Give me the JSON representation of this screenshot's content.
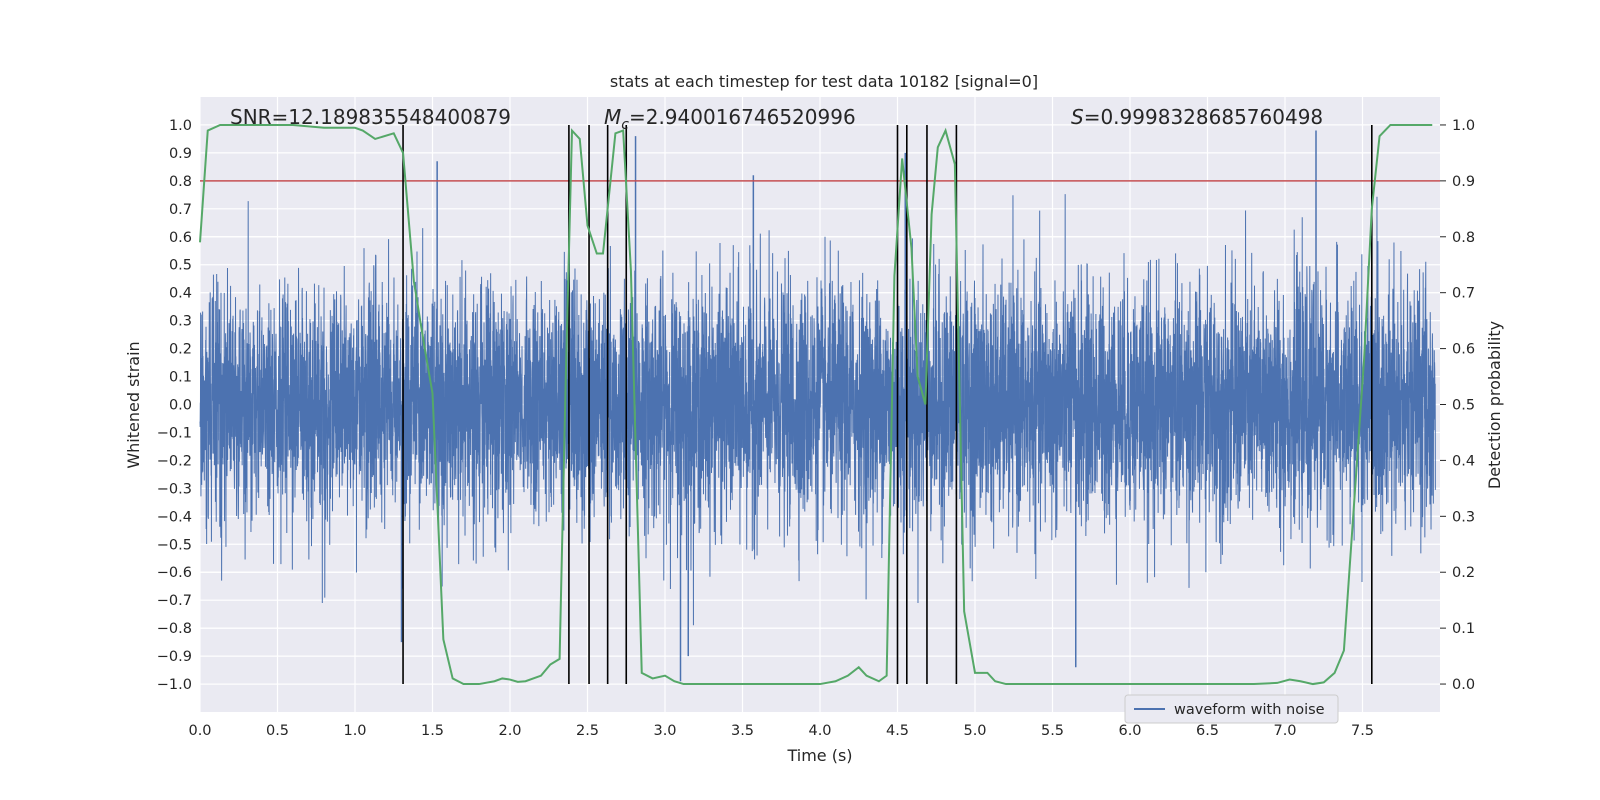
{
  "chart_data": {
    "type": "line",
    "title": "stats at each timestep for test data 10182 [signal=0]",
    "xlabel": "Time (s)",
    "ylabel": "Whitened strain",
    "ylabel_right": "Detection probability",
    "xlim": [
      0.0,
      8.0
    ],
    "ylim": [
      -1.1,
      1.1
    ],
    "ylim_right": [
      -0.05,
      1.05
    ],
    "xticks": [
      "0.0",
      "0.5",
      "1.0",
      "1.5",
      "2.0",
      "2.5",
      "3.0",
      "3.5",
      "4.0",
      "4.5",
      "5.0",
      "5.5",
      "6.0",
      "6.5",
      "7.0",
      "7.5"
    ],
    "yticks": [
      "−1.0",
      "−0.9",
      "−0.8",
      "−0.7",
      "−0.6",
      "−0.5",
      "−0.4",
      "−0.3",
      "−0.2",
      "−0.1",
      "0.0",
      "0.1",
      "0.2",
      "0.3",
      "0.4",
      "0.5",
      "0.6",
      "0.7",
      "0.8",
      "0.9",
      "1.0"
    ],
    "yticks_right": [
      "0.0",
      "0.1",
      "0.2",
      "0.3",
      "0.4",
      "0.5",
      "0.6",
      "0.7",
      "0.8",
      "0.9",
      "1.0"
    ],
    "annotations": {
      "snr": "SNR=12.189835548400879",
      "mc_symbol": "M",
      "mc_sub": "c",
      "mc_value": "=2.940016746520996",
      "s_symbol": "S",
      "s_value": "=0.9998328685760498"
    },
    "legend": {
      "label": "waveform with noise",
      "placement": "lower-right"
    },
    "threshold": {
      "value": 0.9,
      "axis": "right",
      "color": "#c44e52"
    },
    "event_lines_x": [
      1.31,
      2.38,
      2.51,
      2.63,
      2.75,
      4.5,
      4.56,
      4.69,
      4.88,
      7.56
    ],
    "series": [
      {
        "name": "waveform with noise",
        "color": "#4c72b0",
        "kind": "noise",
        "sample_count": 8000,
        "envelope": 0.45,
        "notable_spikes": [
          {
            "x": 1.3,
            "y": -0.85
          },
          {
            "x": 1.53,
            "y": 0.87
          },
          {
            "x": 2.81,
            "y": 0.96
          },
          {
            "x": 3.1,
            "y": -0.99
          },
          {
            "x": 3.15,
            "y": -0.9
          },
          {
            "x": 3.57,
            "y": 0.82
          },
          {
            "x": 4.55,
            "y": 0.9
          },
          {
            "x": 5.65,
            "y": -0.94
          },
          {
            "x": 7.2,
            "y": 0.98
          }
        ]
      },
      {
        "name": "",
        "color": "#55a868",
        "axis": "right",
        "x": [
          0.0,
          0.05,
          0.13,
          0.2,
          0.4,
          0.6,
          0.8,
          0.9,
          1.0,
          1.05,
          1.13,
          1.25,
          1.31,
          1.38,
          1.45,
          1.5,
          1.57,
          1.63,
          1.7,
          1.8,
          1.9,
          1.95,
          2.0,
          2.05,
          2.1,
          2.2,
          2.26,
          2.32,
          2.36,
          2.4,
          2.45,
          2.5,
          2.56,
          2.6,
          2.68,
          2.73,
          2.78,
          2.85,
          2.92,
          3.0,
          3.06,
          3.12,
          3.2,
          3.4,
          3.6,
          3.8,
          4.0,
          4.1,
          4.18,
          4.25,
          4.3,
          4.38,
          4.43,
          4.48,
          4.53,
          4.59,
          4.63,
          4.68,
          4.72,
          4.76,
          4.81,
          4.87,
          4.93,
          5.0,
          5.08,
          5.13,
          5.2,
          5.4,
          5.6,
          5.8,
          6.0,
          6.2,
          6.4,
          6.6,
          6.8,
          6.95,
          7.03,
          7.1,
          7.18,
          7.25,
          7.32,
          7.38,
          7.45,
          7.51,
          7.56,
          7.61,
          7.68,
          7.8,
          7.95
        ],
        "y": [
          0.79,
          0.99,
          1.0,
          1.0,
          1.0,
          1.0,
          0.995,
          0.995,
          0.995,
          0.99,
          0.975,
          0.985,
          0.95,
          0.72,
          0.6,
          0.52,
          0.08,
          0.01,
          0.0,
          0.0,
          0.005,
          0.01,
          0.008,
          0.004,
          0.005,
          0.015,
          0.035,
          0.045,
          0.55,
          0.99,
          0.975,
          0.82,
          0.77,
          0.77,
          0.985,
          0.99,
          0.74,
          0.02,
          0.01,
          0.015,
          0.005,
          0.0,
          0.0,
          0.0,
          0.0,
          0.0,
          0.0,
          0.005,
          0.015,
          0.03,
          0.015,
          0.005,
          0.015,
          0.73,
          0.94,
          0.78,
          0.55,
          0.5,
          0.84,
          0.96,
          0.99,
          0.93,
          0.13,
          0.02,
          0.02,
          0.005,
          0.0,
          0.0,
          0.0,
          0.0,
          0.0,
          0.0,
          0.0,
          0.0,
          0.0,
          0.002,
          0.008,
          0.005,
          0.0,
          0.003,
          0.02,
          0.06,
          0.34,
          0.58,
          0.85,
          0.98,
          1.0,
          1.0,
          1.0
        ]
      }
    ]
  }
}
